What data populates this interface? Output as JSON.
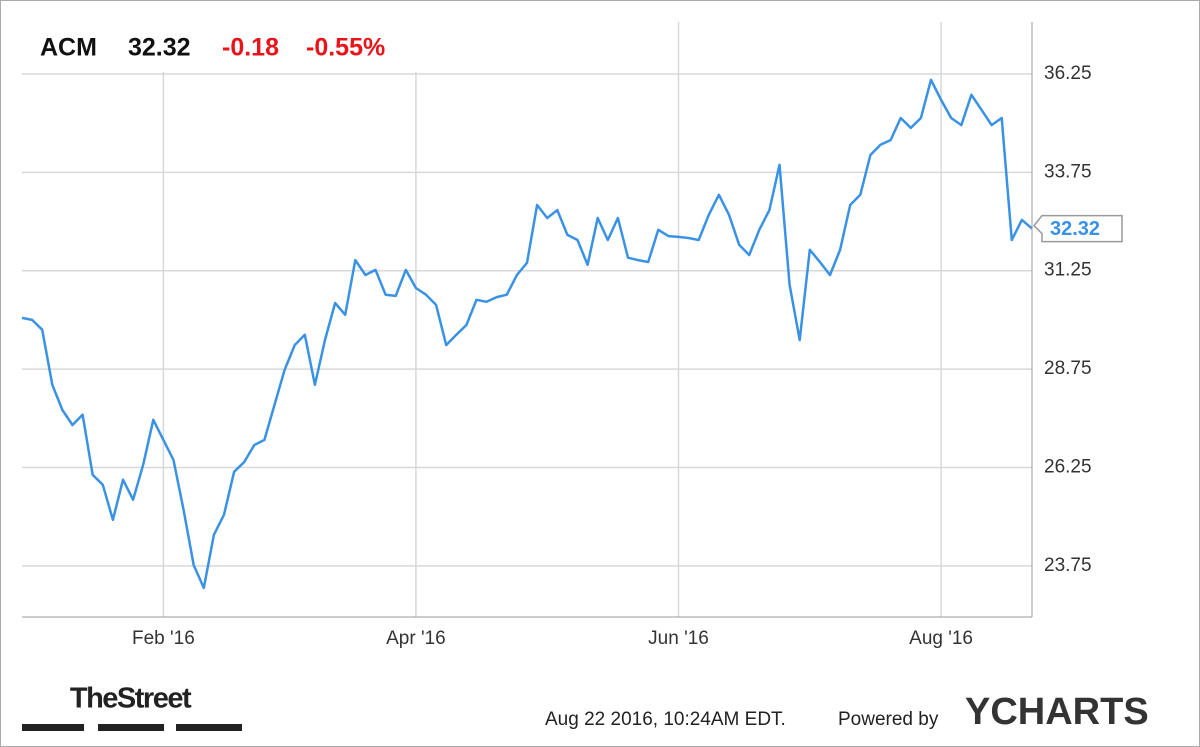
{
  "chart_data": {
    "type": "line",
    "ticker": "ACM",
    "price": "32.32",
    "change": "-0.18",
    "change_pct": "-0.55%",
    "categories": [
      null,
      null,
      null,
      null,
      null,
      null,
      null,
      null,
      null,
      null,
      null,
      null,
      null,
      null,
      "Feb '16",
      null,
      null,
      null,
      null,
      null,
      null,
      null,
      null,
      null,
      null,
      null,
      null,
      null,
      null,
      null,
      null,
      null,
      null,
      null,
      null,
      null,
      null,
      null,
      null,
      "Apr '16",
      null,
      null,
      null,
      null,
      null,
      null,
      null,
      null,
      null,
      null,
      null,
      null,
      null,
      null,
      null,
      null,
      null,
      null,
      null,
      null,
      null,
      null,
      null,
      null,
      null,
      "Jun '16",
      null,
      null,
      null,
      null,
      null,
      null,
      null,
      null,
      null,
      null,
      null,
      null,
      null,
      null,
      null,
      null,
      null,
      null,
      null,
      null,
      null,
      null,
      null,
      null,
      null,
      "Aug '16",
      null,
      null,
      null,
      null,
      null,
      null,
      null,
      null,
      null
    ],
    "series": [
      {
        "name": "ACM",
        "color": "#3a92e4",
        "values": [
          30.05,
          30.0,
          29.75,
          28.35,
          27.71,
          27.33,
          27.59,
          26.06,
          25.81,
          24.92,
          25.94,
          25.43,
          26.32,
          27.46,
          26.95,
          26.44,
          25.17,
          23.77,
          23.19,
          24.54,
          25.05,
          26.14,
          26.39,
          26.82,
          26.95,
          27.84,
          28.73,
          29.36,
          29.62,
          28.35,
          29.49,
          30.43,
          30.13,
          31.52,
          31.14,
          31.27,
          30.64,
          30.61,
          31.27,
          30.81,
          30.64,
          30.38,
          29.36,
          29.62,
          29.87,
          30.51,
          30.46,
          30.58,
          30.64,
          31.14,
          31.45,
          32.92,
          32.59,
          32.79,
          32.16,
          32.03,
          31.4,
          32.59,
          32.03,
          32.59,
          31.58,
          31.52,
          31.47,
          32.29,
          32.13,
          32.11,
          32.08,
          32.03,
          32.67,
          33.18,
          32.67,
          31.91,
          31.65,
          32.29,
          32.79,
          33.94,
          30.89,
          29.49,
          31.78,
          31.47,
          31.14,
          31.78,
          32.92,
          33.18,
          34.19,
          34.45,
          34.57,
          35.13,
          34.88,
          35.13,
          36.1,
          35.59,
          35.13,
          34.95,
          35.72,
          35.34,
          34.95,
          35.13,
          32.03,
          32.54,
          32.32
        ]
      }
    ],
    "ylim": [
      22.45,
      37.57
    ],
    "yticks": [
      23.75,
      26.25,
      28.75,
      31.25,
      33.75,
      36.25
    ],
    "grid": true,
    "timestamp": "Aug 22 2016, 10:24AM EDT.",
    "powered_by": "Powered by",
    "brand": "YCHARTS",
    "source": "TheStreet"
  }
}
